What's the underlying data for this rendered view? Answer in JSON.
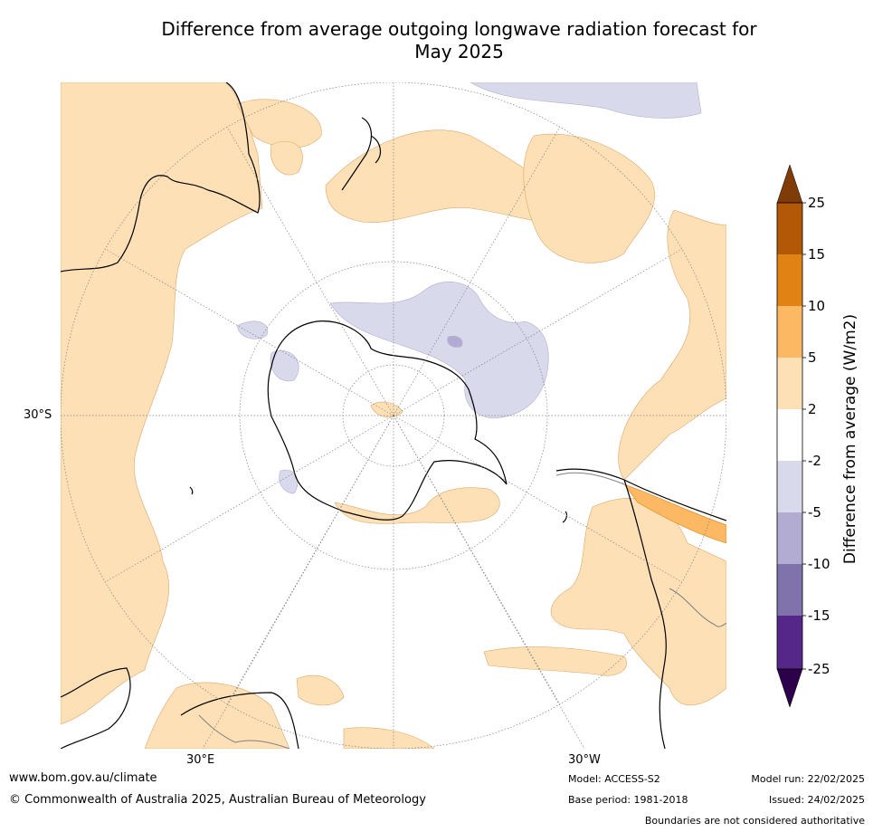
{
  "title_line1": "Difference from average outgoing longwave radiation forecast for",
  "title_line2": "May 2025",
  "map": {
    "land_color": "#000000",
    "grid_labels": {
      "lat_30s": "30°S",
      "lon_30e": "30°E",
      "lon_30w": "30°W"
    }
  },
  "colorbar": {
    "title": "Difference from average (W/m2)",
    "ticks": [
      "25",
      "15",
      "10",
      "5",
      "2",
      "-2",
      "-5",
      "-10",
      "-15",
      "-25"
    ],
    "colors": {
      "over": "#7f3b08",
      "15_25": "#b35806",
      "10_15": "#e08214",
      "5_10": "#fdb863",
      "2_5": "#fee0b6",
      "neg2_2": "#ffffff",
      "neg5_neg2": "#d8daeb",
      "neg10_neg5": "#b2abd2",
      "neg15_neg10": "#8073ac",
      "neg25_neg15": "#542788",
      "under": "#2d004b"
    }
  },
  "footer": {
    "website": "www.bom.gov.au/climate",
    "copyright": "© Commonwealth of Australia 2025, Australian Bureau of Meteorology",
    "model": "Model: ACCESS-S2",
    "base_period": "Base period: 1981-2018",
    "model_run": "Model run: 22/02/2025",
    "issued": "Issued: 24/02/2025",
    "disclaimer": "Boundaries are not considered authoritative"
  }
}
